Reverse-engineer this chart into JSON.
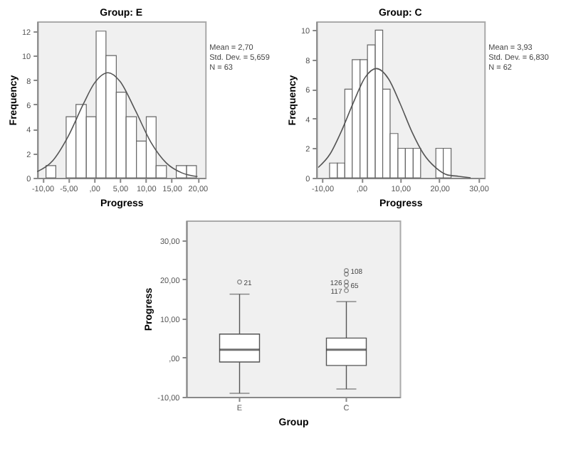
{
  "chart_data": [
    {
      "type": "histogram",
      "title": "Group: E",
      "xlabel": "Progress",
      "ylabel": "Frequency",
      "bins": [
        -9.3,
        -7.4,
        -5.4,
        -3.5,
        -1.5,
        0.4,
        2.3,
        4.3,
        6.2,
        8.2,
        10.1,
        12.0,
        14.0,
        15.9,
        17.9,
        19.8
      ],
      "series": [
        {
          "type": "histogram",
          "color": "#ffffff",
          "values": [
            1,
            0,
            5,
            6,
            5,
            12,
            10,
            7,
            5,
            3,
            5,
            1,
            0,
            1,
            1
          ]
        },
        {
          "type": "line",
          "color": "#555555",
          "x": [
            -11,
            -8,
            -5,
            -2,
            0,
            2.7,
            5,
            8,
            11,
            14,
            17,
            20
          ],
          "values": [
            0.5,
            1.4,
            3.4,
            6.1,
            7.7,
            8.6,
            7.9,
            5.5,
            2.9,
            1.2,
            0.4,
            0.1
          ]
        }
      ],
      "xlim": [
        -11,
        21.5
      ],
      "ylim": [
        0,
        12.8
      ],
      "xticks": [
        {
          "value": -10,
          "label": "-10,00"
        },
        {
          "value": -5,
          "label": "-5,00"
        },
        {
          "value": 0,
          "label": ",00"
        },
        {
          "value": 5,
          "label": "5,00"
        },
        {
          "value": 10,
          "label": "10,00"
        },
        {
          "value": 15,
          "label": "15,00"
        },
        {
          "value": 20,
          "label": "20,00"
        }
      ],
      "yticks": [
        0,
        2,
        4,
        6,
        8,
        10,
        12
      ],
      "annotations": [
        "Mean = 2,70",
        "Std. Dev. = 5,659",
        "N = 63"
      ]
    },
    {
      "type": "histogram",
      "title": "Group: C",
      "xlabel": "Progress",
      "ylabel": "Frequency",
      "bins": [
        -8.1,
        -6.1,
        -4.2,
        -2.3,
        -0.3,
        1.6,
        3.6,
        5.5,
        7.4,
        9.4,
        11.3,
        13.3,
        15.2,
        19.1,
        21.0,
        23.0
      ],
      "series": [
        {
          "type": "histogram",
          "color": "#ffffff",
          "values": [
            1,
            1,
            6,
            8,
            8,
            9,
            10,
            6,
            3,
            2,
            2,
            2,
            0,
            2,
            2
          ]
        },
        {
          "type": "line",
          "color": "#555555",
          "x": [
            -11,
            -8,
            -5,
            -2,
            1,
            3.9,
            7,
            10,
            13,
            16,
            19,
            22,
            25,
            28
          ],
          "values": [
            0.7,
            1.6,
            3.2,
            5.1,
            6.8,
            7.4,
            6.7,
            5.0,
            3.1,
            1.6,
            0.7,
            0.2,
            0.1,
            0.0
          ]
        }
      ],
      "xlim": [
        -11.5,
        31.5
      ],
      "ylim": [
        0,
        10.6
      ],
      "xticks": [
        {
          "value": -10,
          "label": "-10,00"
        },
        {
          "value": 0,
          "label": ",00"
        },
        {
          "value": 10,
          "label": "10,00"
        },
        {
          "value": 20,
          "label": "20,00"
        },
        {
          "value": 30,
          "label": "30,00"
        }
      ],
      "yticks": [
        0,
        2,
        4,
        6,
        8,
        10
      ],
      "annotations": [
        "Mean = 3,93",
        "Std. Dev. = 6,830",
        "N = 62"
      ]
    },
    {
      "type": "box",
      "xlabel": "Group",
      "ylabel": "Progress",
      "categories": [
        "E",
        "C"
      ],
      "color": "#ffffff",
      "marker": "circle",
      "boxes": [
        {
          "low": -9.1,
          "q1": -1.1,
          "median": 2.0,
          "q3": 6.0,
          "high": 16.2
        },
        {
          "low": -8.0,
          "q1": -2.0,
          "median": 2.0,
          "q3": 5.0,
          "high": 14.3
        }
      ],
      "series": [
        {
          "type": "scatter",
          "color": "#555555",
          "x": [
            "E",
            "C",
            "C",
            "C",
            "C",
            "C"
          ],
          "values": [
            19.3,
            22.2,
            21.3,
            19.3,
            18.4,
            17.1
          ]
        }
      ],
      "ylim": [
        -10,
        35
      ],
      "yticks": [
        {
          "value": -10,
          "label": "-10,00"
        },
        {
          "value": 0,
          "label": ",00"
        },
        {
          "value": 10,
          "label": "10,00"
        },
        {
          "value": 20,
          "label": "20,00"
        },
        {
          "value": 30,
          "label": "30,00"
        }
      ],
      "annotations": [
        {
          "text": "21",
          "x": "E",
          "y": 19.3
        },
        {
          "text": "108",
          "x": "C",
          "y": 22.2
        },
        {
          "text": "126",
          "x": "C",
          "y": 19.3
        },
        {
          "text": "65",
          "x": "C",
          "y": 18.4
        },
        {
          "text": "117",
          "x": "C",
          "y": 17.1
        }
      ]
    }
  ]
}
